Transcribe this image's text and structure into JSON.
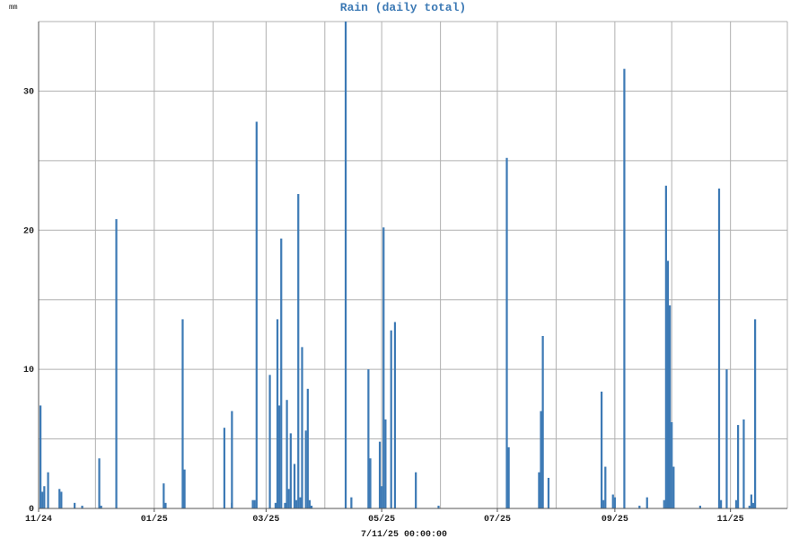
{
  "chart_data": {
    "type": "bar",
    "title": "Rain (daily total)",
    "ylabel": "mm",
    "xlabel": "7/11/25 00:00:00",
    "ylim": [
      0,
      35
    ],
    "yticks": [
      0,
      10,
      20,
      30
    ],
    "grid": true,
    "bar_color": "#3d7ab5",
    "x_range": [
      "2024-11-01",
      "2025-12-01"
    ],
    "xticks": [
      {
        "date": "2024-11-01",
        "label": "11/24"
      },
      {
        "date": "2025-01-01",
        "label": "01/25"
      },
      {
        "date": "2025-03-01",
        "label": "03/25"
      },
      {
        "date": "2025-05-01",
        "label": "05/25"
      },
      {
        "date": "2025-07-01",
        "label": "07/25"
      },
      {
        "date": "2025-09-01",
        "label": "09/25"
      },
      {
        "date": "2025-11-01",
        "label": "11/25"
      }
    ],
    "minor_grid_dates": [
      "2024-12-01",
      "2025-02-01",
      "2025-04-01",
      "2025-06-01",
      "2025-08-01",
      "2025-10-01"
    ],
    "series": [
      {
        "points": [
          [
            "2024-11-02",
            7.4
          ],
          [
            "2024-11-03",
            1.2
          ],
          [
            "2024-11-04",
            1.6
          ],
          [
            "2024-11-06",
            2.6
          ],
          [
            "2024-11-12",
            1.4
          ],
          [
            "2024-11-13",
            1.2
          ],
          [
            "2024-11-20",
            0.4
          ],
          [
            "2024-11-24",
            0.2
          ],
          [
            "2024-12-03",
            3.6
          ],
          [
            "2024-12-04",
            0.2
          ],
          [
            "2024-12-12",
            20.8
          ],
          [
            "2025-01-06",
            1.8
          ],
          [
            "2025-01-07",
            0.4
          ],
          [
            "2025-01-16",
            13.6
          ],
          [
            "2025-01-17",
            2.8
          ],
          [
            "2025-02-07",
            5.8
          ],
          [
            "2025-02-11",
            7.0
          ],
          [
            "2025-02-11",
            0.4
          ],
          [
            "2025-02-22",
            0.6
          ],
          [
            "2025-02-23",
            0.6
          ],
          [
            "2025-02-24",
            27.8
          ],
          [
            "2025-03-03",
            9.6
          ],
          [
            "2025-03-06",
            0.4
          ],
          [
            "2025-03-07",
            13.6
          ],
          [
            "2025-03-08",
            7.4
          ],
          [
            "2025-03-09",
            19.4
          ],
          [
            "2025-03-11",
            0.4
          ],
          [
            "2025-03-12",
            7.8
          ],
          [
            "2025-03-13",
            1.4
          ],
          [
            "2025-03-14",
            5.4
          ],
          [
            "2025-03-16",
            3.2
          ],
          [
            "2025-03-17",
            0.6
          ],
          [
            "2025-03-18",
            22.6
          ],
          [
            "2025-03-19",
            0.8
          ],
          [
            "2025-03-20",
            11.6
          ],
          [
            "2025-03-22",
            5.6
          ],
          [
            "2025-03-23",
            8.6
          ],
          [
            "2025-03-24",
            0.6
          ],
          [
            "2025-03-25",
            0.2
          ],
          [
            "2025-04-12",
            35.0
          ],
          [
            "2025-04-15",
            0.8
          ],
          [
            "2025-04-24",
            10.0
          ],
          [
            "2025-04-25",
            3.6
          ],
          [
            "2025-04-30",
            4.8
          ],
          [
            "2025-05-01",
            1.6
          ],
          [
            "2025-05-02",
            20.2
          ],
          [
            "2025-05-03",
            6.4
          ],
          [
            "2025-05-06",
            12.8
          ],
          [
            "2025-05-08",
            13.4
          ],
          [
            "2025-05-19",
            2.6
          ],
          [
            "2025-05-31",
            0.2
          ],
          [
            "2025-07-06",
            25.2
          ],
          [
            "2025-07-07",
            4.4
          ],
          [
            "2025-07-23",
            2.6
          ],
          [
            "2025-07-24",
            7.0
          ],
          [
            "2025-07-25",
            12.4
          ],
          [
            "2025-07-28",
            2.2
          ],
          [
            "2025-08-25",
            8.4
          ],
          [
            "2025-08-26",
            0.6
          ],
          [
            "2025-08-27",
            3.0
          ],
          [
            "2025-08-31",
            1.0
          ],
          [
            "2025-09-01",
            0.8
          ],
          [
            "2025-09-06",
            31.6
          ],
          [
            "2025-09-14",
            0.2
          ],
          [
            "2025-09-18",
            0.8
          ],
          [
            "2025-09-27",
            0.6
          ],
          [
            "2025-09-28",
            23.2
          ],
          [
            "2025-09-29",
            17.8
          ],
          [
            "2025-09-30",
            14.6
          ],
          [
            "2025-10-01",
            6.2
          ],
          [
            "2025-10-02",
            3.0
          ],
          [
            "2025-10-16",
            0.2
          ],
          [
            "2025-10-26",
            23.0
          ],
          [
            "2025-10-27",
            0.6
          ],
          [
            "2025-10-30",
            10.0
          ],
          [
            "2025-11-04",
            0.6
          ],
          [
            "2025-11-05",
            6.0
          ],
          [
            "2025-11-08",
            6.4
          ],
          [
            "2025-11-11",
            0.2
          ],
          [
            "2025-11-12",
            1.0
          ],
          [
            "2025-11-13",
            0.4
          ],
          [
            "2025-11-14",
            13.6
          ]
        ]
      }
    ]
  }
}
